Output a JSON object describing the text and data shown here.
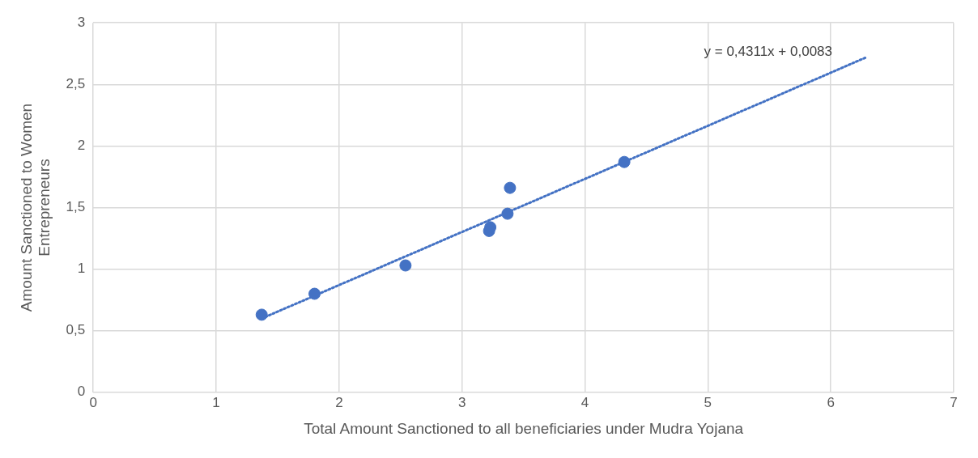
{
  "chart_data": {
    "type": "scatter",
    "xlabel": "Total Amount Sanctioned to all beneficiaries under Mudra Yojana",
    "ylabel": "Amount Sanctioned to Women Entrepreneurs",
    "annotations": [
      "y = 0,4311x + 0,0083"
    ],
    "series": [
      {
        "type": "scatter",
        "color": "#4472c4",
        "x": [
          1.37,
          1.8,
          2.54,
          3.22,
          3.23,
          3.37,
          3.39,
          4.32
        ],
        "values": [
          0.63,
          0.8,
          1.03,
          1.31,
          1.34,
          1.45,
          1.66,
          1.87
        ],
        "marker": "circle"
      },
      {
        "type": "line",
        "color": "#4472c4",
        "x": [
          1.37,
          6.28
        ],
        "values": [
          0.599,
          2.716
        ],
        "marker": "none",
        "line_style": "dotted"
      }
    ],
    "xlim": [
      0,
      7
    ],
    "xticks": [
      0,
      1,
      2,
      3,
      4,
      5,
      6,
      7
    ],
    "ylim": [
      0,
      3
    ],
    "yticks": [
      0,
      {
        "value": 0.5,
        "label": "0,5"
      },
      1,
      {
        "value": 1.5,
        "label": "1,5"
      },
      2,
      {
        "value": 2.5,
        "label": "2,5"
      },
      3
    ],
    "grid": true,
    "legend": false
  }
}
